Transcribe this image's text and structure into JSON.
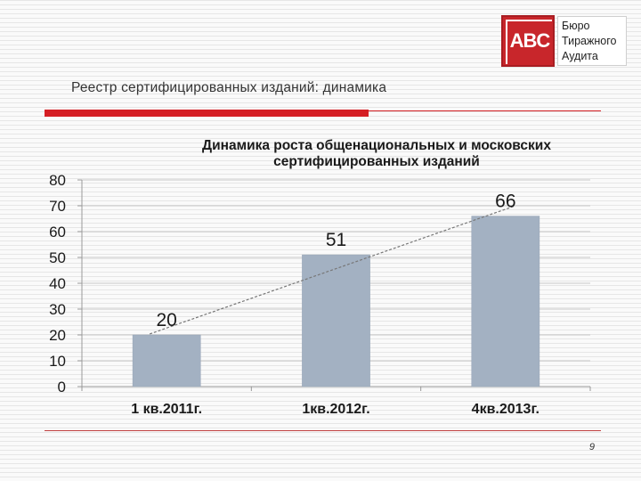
{
  "logo": {
    "mark": "ABC",
    "lines": [
      "Бюро",
      "Тиражного",
      "Аудита"
    ]
  },
  "header": {
    "subtitle": "Реестр сертифицированных изданий: динамика"
  },
  "page_number": "9",
  "colors": {
    "accent_red": "#d51e24",
    "bar_fill": "#a3b1c2",
    "trend_line": "#777777"
  },
  "chart_data": {
    "type": "bar",
    "title": "Динамика роста общенациональных и московских сертифицированных изданий",
    "title_lines": [
      "Динамика роста  общенациональных и московских",
      "сертифицированных изданий"
    ],
    "categories": [
      "1 кв.2011г.",
      "1кв.2012г.",
      "4кв.2013г."
    ],
    "values": [
      20,
      51,
      66
    ],
    "ylim": [
      0,
      80
    ],
    "yticks": [
      0,
      10,
      20,
      30,
      40,
      50,
      60,
      70,
      80
    ],
    "grid": true,
    "trendline": "linear",
    "legend": "none"
  }
}
